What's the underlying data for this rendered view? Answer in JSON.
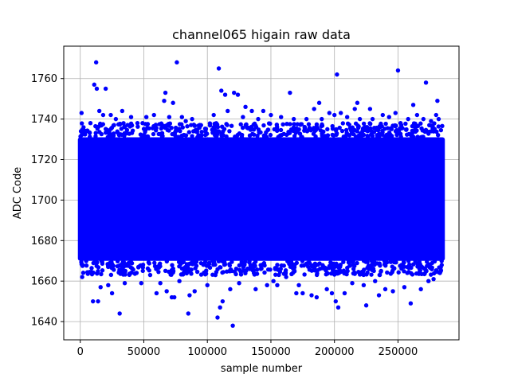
{
  "chart_data": {
    "type": "scatter",
    "title": "channel065 higain raw data",
    "xlabel": "sample number",
    "ylabel": "ADC Code",
    "xlim": [
      -13000,
      298000
    ],
    "ylim": [
      1631,
      1776
    ],
    "xticks": [
      0,
      50000,
      100000,
      150000,
      200000,
      250000
    ],
    "xtick_labels": [
      "0",
      "50000",
      "100000",
      "150000",
      "200000",
      "250000"
    ],
    "yticks": [
      1640,
      1660,
      1680,
      1700,
      1720,
      1740,
      1760
    ],
    "ytick_labels": [
      "1640",
      "1660",
      "1680",
      "1700",
      "1720",
      "1740",
      "1760"
    ],
    "grid": true,
    "marker_color": "#0000ff",
    "bulk_region": {
      "x_range": [
        0,
        285000
      ],
      "y_range": [
        1670,
        1731
      ]
    },
    "series": [
      {
        "points": [
          [
            1000,
            1743
          ],
          [
            1500,
            1662
          ],
          [
            5000,
            1734
          ],
          [
            8000,
            1738
          ],
          [
            10000,
            1650
          ],
          [
            11000,
            1757
          ],
          [
            12500,
            1768
          ],
          [
            13000,
            1755
          ],
          [
            14000,
            1650
          ],
          [
            15000,
            1744
          ],
          [
            16000,
            1657
          ],
          [
            18000,
            1742
          ],
          [
            20000,
            1755
          ],
          [
            22000,
            1658
          ],
          [
            24000,
            1742
          ],
          [
            25000,
            1654
          ],
          [
            28000,
            1740
          ],
          [
            31000,
            1644
          ],
          [
            33000,
            1744
          ],
          [
            35000,
            1659
          ],
          [
            40000,
            1741
          ],
          [
            45000,
            1738
          ],
          [
            48000,
            1659
          ],
          [
            52000,
            1741
          ],
          [
            55000,
            1663
          ],
          [
            58000,
            1742
          ],
          [
            60000,
            1654
          ],
          [
            63000,
            1659
          ],
          [
            66000,
            1749
          ],
          [
            67000,
            1753
          ],
          [
            68000,
            1655
          ],
          [
            70000,
            1741
          ],
          [
            72000,
            1652
          ],
          [
            73000,
            1748
          ],
          [
            74000,
            1652
          ],
          [
            76000,
            1768
          ],
          [
            78000,
            1660
          ],
          [
            80000,
            1741
          ],
          [
            83000,
            1739
          ],
          [
            85000,
            1644
          ],
          [
            86000,
            1653
          ],
          [
            88000,
            1740
          ],
          [
            90000,
            1655
          ],
          [
            95000,
            1737
          ],
          [
            100000,
            1658
          ],
          [
            105000,
            1742
          ],
          [
            108000,
            1642
          ],
          [
            109000,
            1765
          ],
          [
            110000,
            1647
          ],
          [
            111000,
            1754
          ],
          [
            112000,
            1650
          ],
          [
            114000,
            1752
          ],
          [
            116000,
            1744
          ],
          [
            118000,
            1656
          ],
          [
            120000,
            1638
          ],
          [
            121000,
            1753
          ],
          [
            124000,
            1752
          ],
          [
            125000,
            1659
          ],
          [
            128000,
            1741
          ],
          [
            130000,
            1746
          ],
          [
            135000,
            1744
          ],
          [
            138000,
            1656
          ],
          [
            140000,
            1740
          ],
          [
            144000,
            1744
          ],
          [
            147000,
            1658
          ],
          [
            150000,
            1742
          ],
          [
            152000,
            1660
          ],
          [
            155000,
            1658
          ],
          [
            158000,
            1741
          ],
          [
            162000,
            1662
          ],
          [
            165000,
            1753
          ],
          [
            168000,
            1740
          ],
          [
            170000,
            1654
          ],
          [
            172000,
            1658
          ],
          [
            175000,
            1654
          ],
          [
            178000,
            1740
          ],
          [
            182000,
            1653
          ],
          [
            184000,
            1745
          ],
          [
            186000,
            1652
          ],
          [
            188000,
            1748
          ],
          [
            190000,
            1740
          ],
          [
            194000,
            1656
          ],
          [
            196000,
            1743
          ],
          [
            198000,
            1654
          ],
          [
            200000,
            1742
          ],
          [
            201000,
            1650
          ],
          [
            202000,
            1762
          ],
          [
            203000,
            1647
          ],
          [
            205000,
            1743
          ],
          [
            208000,
            1654
          ],
          [
            210000,
            1741
          ],
          [
            214000,
            1659
          ],
          [
            216000,
            1745
          ],
          [
            218000,
            1748
          ],
          [
            220000,
            1740
          ],
          [
            223000,
            1658
          ],
          [
            225000,
            1648
          ],
          [
            228000,
            1745
          ],
          [
            230000,
            1740
          ],
          [
            232000,
            1660
          ],
          [
            235000,
            1653
          ],
          [
            238000,
            1742
          ],
          [
            240000,
            1656
          ],
          [
            243000,
            1741
          ],
          [
            246000,
            1655
          ],
          [
            248000,
            1743
          ],
          [
            250000,
            1764
          ],
          [
            252000,
            1738
          ],
          [
            255000,
            1657
          ],
          [
            258000,
            1740
          ],
          [
            260000,
            1649
          ],
          [
            262000,
            1747
          ],
          [
            265000,
            1742
          ],
          [
            268000,
            1656
          ],
          [
            270000,
            1740
          ],
          [
            272000,
            1758
          ],
          [
            274000,
            1660
          ],
          [
            276000,
            1739
          ],
          [
            278000,
            1661
          ],
          [
            280000,
            1742
          ],
          [
            281000,
            1749
          ],
          [
            282000,
            1740
          ],
          [
            283000,
            1664
          ]
        ]
      }
    ]
  }
}
